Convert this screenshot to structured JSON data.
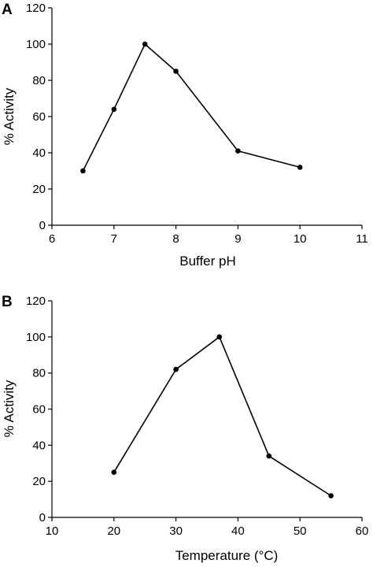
{
  "chart_data": [
    {
      "panel": "A",
      "type": "line",
      "xlabel": "Buffer pH",
      "ylabel": "% Activity",
      "xlim": [
        6,
        11
      ],
      "ylim": [
        0,
        120
      ],
      "xticks": [
        6,
        7,
        8,
        9,
        10,
        11
      ],
      "yticks": [
        0,
        20,
        40,
        60,
        80,
        100,
        120
      ],
      "grid": false,
      "series": [
        {
          "x": [
            6.5,
            7,
            7.5,
            8,
            9,
            10
          ],
          "y": [
            30,
            64,
            100,
            85,
            41,
            32
          ]
        }
      ],
      "colors": {
        "line": "#000000",
        "marker": "#000000"
      }
    },
    {
      "panel": "B",
      "type": "line",
      "xlabel": "Temperature (°C)",
      "ylabel": "% Activity",
      "xlim": [
        10,
        60
      ],
      "ylim": [
        0,
        120
      ],
      "xticks": [
        10,
        20,
        30,
        40,
        50,
        60
      ],
      "yticks": [
        0,
        20,
        40,
        60,
        80,
        100,
        120
      ],
      "grid": false,
      "series": [
        {
          "x": [
            20,
            30,
            37,
            45,
            55
          ],
          "y": [
            25,
            82,
            100,
            34,
            12
          ]
        }
      ],
      "colors": {
        "line": "#000000",
        "marker": "#000000"
      }
    }
  ]
}
